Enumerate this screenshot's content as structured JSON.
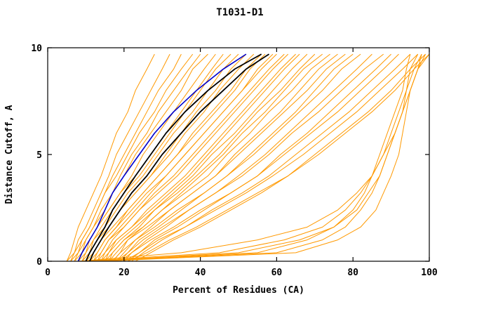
{
  "chart_data": {
    "type": "line",
    "title": "T1031-D1",
    "xlabel": "Percent of Residues (CA)",
    "ylabel": "Distance Cutoff, A",
    "xlim": [
      0,
      100
    ],
    "ylim": [
      0,
      10
    ],
    "x_ticks": [
      0,
      20,
      40,
      60,
      80,
      100
    ],
    "y_ticks": [
      0,
      5,
      10
    ],
    "grid": false,
    "legend": "none",
    "colors": {
      "orange": "#FF9900",
      "blue": "#0000CD",
      "black": "#000000",
      "frame": "#000000",
      "background": "#FFFFFF"
    },
    "y_grid": [
      0,
      0.4,
      1,
      1.6,
      2.4,
      3.2,
      4,
      5,
      6,
      7,
      8,
      9,
      9.7
    ],
    "orange_series_x": [
      [
        5,
        6,
        7,
        8,
        10,
        12,
        14,
        16,
        18,
        21,
        23,
        26,
        28
      ],
      [
        6,
        7,
        8,
        10,
        12,
        14,
        16,
        18,
        21,
        24,
        27,
        30,
        32
      ],
      [
        7,
        8,
        9,
        11,
        13,
        15,
        17,
        20,
        23,
        26,
        29,
        33,
        35
      ],
      [
        5,
        7,
        9,
        11,
        13,
        15,
        18,
        21,
        24,
        28,
        31,
        35,
        38
      ],
      [
        8,
        9,
        10,
        12,
        14,
        17,
        19,
        22,
        26,
        29,
        33,
        37,
        40
      ],
      [
        6,
        8,
        10,
        12,
        15,
        17,
        20,
        23,
        27,
        31,
        35,
        38,
        42
      ],
      [
        9,
        10,
        11,
        13,
        16,
        19,
        22,
        25,
        29,
        33,
        37,
        41,
        44
      ],
      [
        7,
        9,
        11,
        13,
        16,
        19,
        23,
        27,
        31,
        35,
        39,
        43,
        46
      ],
      [
        10,
        11,
        12,
        14,
        17,
        20,
        24,
        28,
        32,
        36,
        40,
        44,
        48
      ],
      [
        8,
        10,
        12,
        15,
        18,
        21,
        25,
        29,
        33,
        38,
        42,
        46,
        50
      ],
      [
        11,
        12,
        14,
        16,
        19,
        23,
        27,
        31,
        35,
        39,
        44,
        48,
        52
      ],
      [
        9,
        11,
        13,
        16,
        19,
        23,
        27,
        32,
        36,
        41,
        45,
        50,
        54
      ],
      [
        12,
        13,
        15,
        18,
        21,
        25,
        29,
        34,
        38,
        43,
        48,
        52,
        56
      ],
      [
        10,
        12,
        14,
        17,
        21,
        25,
        29,
        34,
        39,
        44,
        49,
        53,
        57
      ],
      [
        13,
        14,
        16,
        19,
        23,
        27,
        31,
        36,
        41,
        46,
        51,
        55,
        59
      ],
      [
        11,
        13,
        15,
        18,
        22,
        26,
        31,
        36,
        41,
        46,
        51,
        56,
        60
      ],
      [
        14,
        15,
        17,
        20,
        24,
        28,
        33,
        38,
        43,
        48,
        53,
        58,
        62
      ],
      [
        12,
        14,
        16,
        20,
        24,
        29,
        34,
        39,
        44,
        49,
        54,
        59,
        63
      ],
      [
        15,
        16,
        18,
        22,
        26,
        31,
        36,
        41,
        46,
        51,
        56,
        61,
        65
      ],
      [
        13,
        15,
        18,
        22,
        27,
        32,
        37,
        42,
        47,
        52,
        57,
        62,
        66
      ],
      [
        16,
        17,
        20,
        24,
        28,
        33,
        38,
        43,
        49,
        54,
        59,
        64,
        68
      ],
      [
        14,
        16,
        19,
        23,
        28,
        34,
        39,
        45,
        50,
        55,
        61,
        66,
        70
      ],
      [
        17,
        19,
        21,
        25,
        30,
        35,
        40,
        46,
        51,
        57,
        62,
        67,
        72
      ],
      [
        15,
        17,
        20,
        25,
        30,
        36,
        42,
        47,
        53,
        58,
        64,
        69,
        74
      ],
      [
        18,
        20,
        23,
        27,
        32,
        38,
        44,
        49,
        55,
        61,
        66,
        71,
        76
      ],
      [
        16,
        18,
        21,
        26,
        32,
        38,
        44,
        50,
        56,
        62,
        68,
        73,
        78
      ],
      [
        19,
        21,
        24,
        29,
        35,
        41,
        47,
        53,
        59,
        65,
        70,
        75,
        80
      ],
      [
        17,
        19,
        23,
        28,
        34,
        41,
        47,
        54,
        60,
        66,
        72,
        77,
        82
      ],
      [
        20,
        22,
        26,
        31,
        37,
        44,
        50,
        57,
        63,
        69,
        75,
        81,
        85
      ],
      [
        18,
        21,
        25,
        30,
        37,
        44,
        51,
        58,
        64,
        71,
        77,
        83,
        88
      ],
      [
        21,
        24,
        28,
        34,
        41,
        48,
        55,
        61,
        68,
        74,
        80,
        86,
        90
      ],
      [
        19,
        22,
        27,
        33,
        40,
        48,
        55,
        62,
        69,
        76,
        82,
        88,
        92
      ],
      [
        22,
        25,
        30,
        36,
        43,
        51,
        58,
        65,
        72,
        79,
        85,
        91,
        95
      ],
      [
        20,
        24,
        29,
        36,
        44,
        52,
        59,
        67,
        74,
        81,
        87,
        93,
        97
      ],
      [
        23,
        27,
        33,
        40,
        48,
        56,
        63,
        70,
        77,
        84,
        90,
        95,
        99
      ],
      [
        21,
        26,
        32,
        39,
        47,
        55,
        63,
        71,
        78,
        85,
        91,
        96,
        100
      ],
      [
        10,
        55,
        68,
        75,
        80,
        83,
        85,
        87,
        89,
        91,
        93,
        94,
        95
      ],
      [
        12,
        60,
        72,
        78,
        82,
        85,
        87,
        89,
        91,
        93,
        94,
        95,
        97
      ],
      [
        9,
        45,
        62,
        72,
        78,
        82,
        85,
        88,
        90,
        92,
        94,
        96,
        98
      ],
      [
        11,
        50,
        66,
        75,
        81,
        84,
        87,
        89,
        91,
        93,
        95,
        97,
        99
      ],
      [
        8,
        35,
        55,
        68,
        76,
        81,
        85,
        88,
        91,
        93,
        95,
        97,
        100
      ],
      [
        14,
        65,
        76,
        82,
        86,
        88,
        90,
        92,
        93,
        94,
        95,
        97,
        98
      ]
    ],
    "named_series": [
      {
        "name": "black-model-curve-1",
        "color": "#000000",
        "width": 1.8,
        "xs": [
          10,
          11,
          13,
          15,
          17,
          20,
          23,
          27,
          31,
          36,
          42,
          49,
          56
        ]
      },
      {
        "name": "black-model-curve-2",
        "color": "#000000",
        "width": 1.8,
        "xs": [
          11,
          12,
          14,
          16,
          19,
          22,
          26,
          30,
          35,
          40,
          46,
          52,
          58
        ]
      },
      {
        "name": "blue-model-curve",
        "color": "#0000CD",
        "width": 1.6,
        "xs": [
          8,
          9,
          11,
          13,
          15,
          17,
          20,
          24,
          28,
          33,
          39,
          46,
          52
        ]
      }
    ]
  }
}
